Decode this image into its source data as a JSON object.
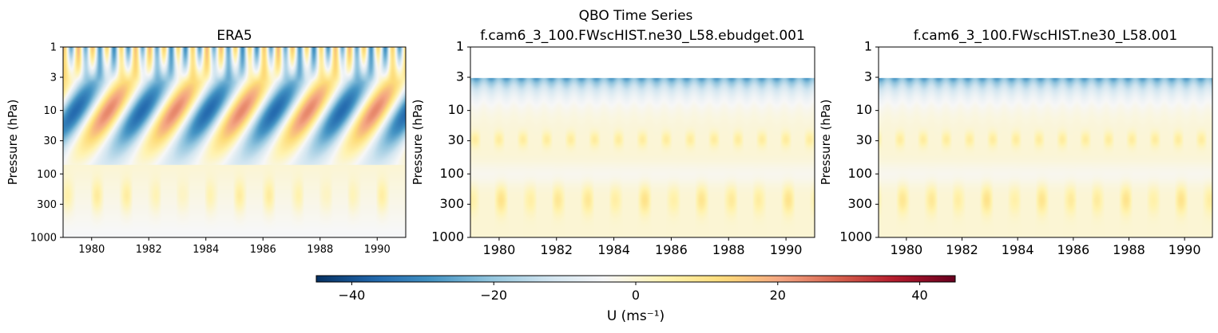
{
  "suptitle": "QBO Time Series",
  "colors": {
    "colormap": "RdBu_r",
    "stops": [
      "#053061",
      "#2166ac",
      "#4393c3",
      "#92c5de",
      "#d1e5f0",
      "#f7f7f7",
      "#fff3b0",
      "#fddc7a",
      "#f4a582",
      "#d6604d",
      "#b2182b",
      "#67001f"
    ]
  },
  "chart_data": [
    {
      "type": "heatmap",
      "title": "ERA5",
      "ylabel": "Pressure (hPa)",
      "xlabel": "",
      "x_range": [
        1979.0,
        1991.0
      ],
      "x_ticks": [
        1980,
        1982,
        1984,
        1986,
        1988,
        1990
      ],
      "y_scale": "log",
      "y_inverted": true,
      "y_range": [
        1,
        1000
      ],
      "y_ticks": [
        1,
        3,
        10,
        30,
        100,
        300,
        1000
      ],
      "variable": "zonal wind U",
      "value_range": [
        -45,
        45
      ],
      "qbo_period_months": 28,
      "data_top_hPa": 1
    },
    {
      "type": "heatmap",
      "title": "f.cam6_3_100.FWscHIST.ne30_L58.ebudget.001",
      "ylabel": "Pressure (hPa)",
      "xlabel": "",
      "x_range": [
        1979.0,
        1991.0
      ],
      "x_ticks": [
        1980,
        1982,
        1984,
        1986,
        1988,
        1990
      ],
      "y_scale": "log",
      "y_inverted": true,
      "y_range": [
        1,
        1000
      ],
      "y_ticks": [
        1,
        3,
        10,
        30,
        100,
        300,
        1000
      ],
      "variable": "zonal wind U",
      "value_range": [
        -45,
        45
      ],
      "data_top_hPa": 3
    },
    {
      "type": "heatmap",
      "title": "f.cam6_3_100.FWscHIST.ne30_L58.001",
      "ylabel": "Pressure (hPa)",
      "xlabel": "",
      "x_range": [
        1979.0,
        1991.0
      ],
      "x_ticks": [
        1980,
        1982,
        1984,
        1986,
        1988,
        1990
      ],
      "y_scale": "log",
      "y_inverted": true,
      "y_range": [
        1,
        1000
      ],
      "y_ticks": [
        1,
        3,
        10,
        30,
        100,
        300,
        1000
      ],
      "variable": "zonal wind U",
      "value_range": [
        -45,
        45
      ],
      "data_top_hPa": 3
    }
  ],
  "colorbar": {
    "label": "U (ms⁻¹)",
    "range": [
      -45,
      45
    ],
    "ticks": [
      -40,
      -20,
      0,
      20,
      40
    ],
    "tick_labels": [
      "−40",
      "−20",
      "0",
      "20",
      "40"
    ]
  }
}
